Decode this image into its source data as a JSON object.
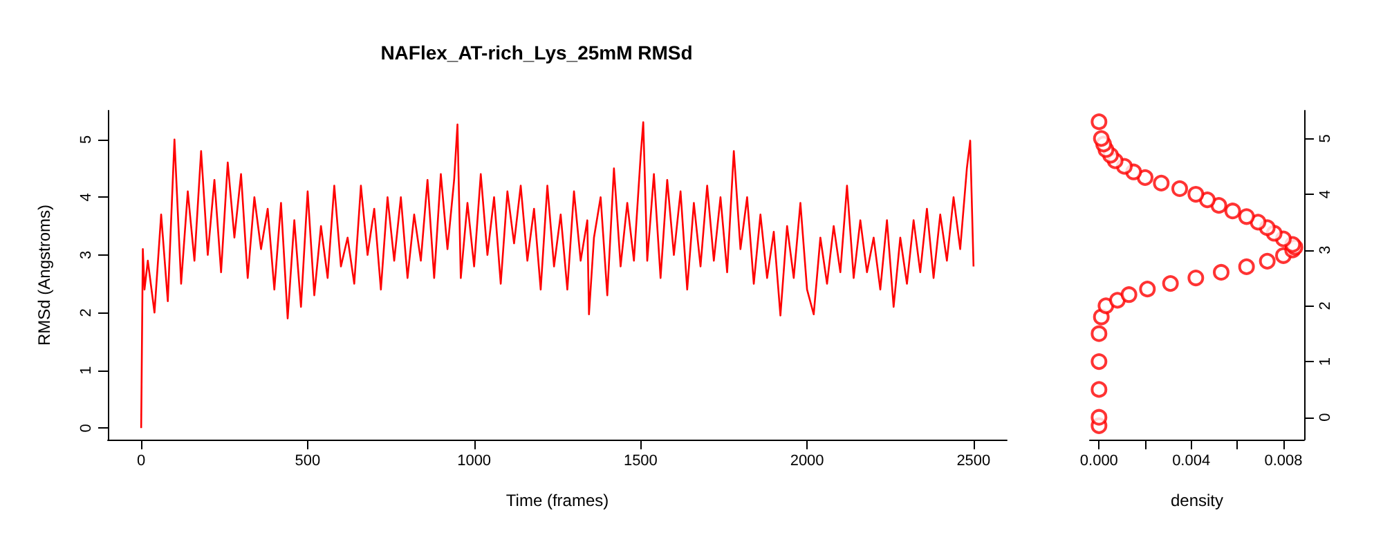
{
  "chart_data": [
    {
      "type": "line",
      "title": "NAFlex_AT-rich_Lys_25mM RMSd",
      "xlabel": "Time (frames)",
      "ylabel": "RMSd (Angstroms)",
      "x": [
        0,
        5,
        10,
        20,
        40,
        60,
        80,
        100,
        120,
        140,
        160,
        180,
        200,
        220,
        240,
        260,
        280,
        300,
        320,
        340,
        360,
        380,
        400,
        420,
        440,
        460,
        480,
        500,
        520,
        540,
        560,
        580,
        600,
        620,
        640,
        660,
        680,
        700,
        720,
        740,
        760,
        780,
        800,
        820,
        840,
        860,
        880,
        900,
        920,
        940,
        950,
        960,
        980,
        1000,
        1020,
        1040,
        1060,
        1080,
        1100,
        1120,
        1140,
        1160,
        1180,
        1200,
        1220,
        1240,
        1260,
        1280,
        1300,
        1320,
        1340,
        1345,
        1360,
        1380,
        1400,
        1420,
        1440,
        1460,
        1480,
        1500,
        1508,
        1520,
        1540,
        1560,
        1580,
        1600,
        1620,
        1640,
        1660,
        1680,
        1700,
        1720,
        1740,
        1760,
        1780,
        1800,
        1820,
        1840,
        1860,
        1880,
        1900,
        1920,
        1940,
        1960,
        1980,
        2000,
        2020,
        2040,
        2060,
        2080,
        2100,
        2120,
        2140,
        2160,
        2180,
        2200,
        2220,
        2240,
        2260,
        2280,
        2300,
        2320,
        2340,
        2360,
        2380,
        2400,
        2420,
        2440,
        2460,
        2480,
        2490,
        2500
      ],
      "series": [
        {
          "color": "#ff0000",
          "values": [
            0.0,
            3.1,
            2.4,
            2.9,
            2.0,
            3.7,
            2.2,
            5.0,
            2.5,
            4.1,
            2.9,
            4.8,
            3.0,
            4.3,
            2.7,
            4.6,
            3.3,
            4.4,
            2.6,
            4.0,
            3.1,
            3.8,
            2.4,
            3.9,
            1.9,
            3.6,
            2.1,
            4.1,
            2.3,
            3.5,
            2.6,
            4.2,
            2.8,
            3.3,
            2.5,
            4.2,
            3.0,
            3.8,
            2.4,
            4.0,
            2.9,
            4.0,
            2.6,
            3.7,
            2.9,
            4.3,
            2.6,
            4.4,
            3.1,
            4.3,
            5.26,
            2.6,
            3.9,
            2.8,
            4.4,
            3.0,
            4.0,
            2.5,
            4.1,
            3.2,
            4.2,
            2.9,
            3.8,
            2.4,
            4.2,
            2.8,
            3.7,
            2.4,
            4.1,
            2.9,
            3.6,
            1.97,
            3.3,
            4.0,
            2.3,
            4.5,
            2.8,
            3.9,
            2.9,
            4.7,
            5.3,
            2.9,
            4.4,
            2.6,
            4.3,
            3.0,
            4.1,
            2.4,
            3.9,
            2.8,
            4.2,
            2.9,
            4.0,
            2.7,
            4.8,
            3.1,
            4.0,
            2.5,
            3.7,
            2.6,
            3.4,
            1.95,
            3.5,
            2.6,
            3.9,
            2.4,
            1.97,
            3.3,
            2.5,
            3.5,
            2.7,
            4.2,
            2.6,
            3.6,
            2.7,
            3.3,
            2.4,
            3.6,
            2.1,
            3.3,
            2.5,
            3.6,
            2.7,
            3.8,
            2.6,
            3.7,
            2.9,
            4.0,
            3.1,
            4.5,
            4.98,
            2.8
          ]
        }
      ],
      "xlim": [
        -100,
        2600
      ],
      "xticks": [
        0,
        500,
        1000,
        1500,
        2000,
        2500
      ],
      "ylim": [
        -0.2,
        5.5
      ],
      "yticks": [
        0,
        1,
        2,
        3,
        4,
        5
      ],
      "grid": false
    },
    {
      "type": "scatter",
      "xlabel": "density",
      "marker": "circle",
      "x": [
        0,
        0,
        0,
        0,
        0,
        0.0001,
        0.0003,
        0.0008,
        0.0013,
        0.0021,
        0.0031,
        0.0042,
        0.0053,
        0.0064,
        0.0073,
        0.008,
        0.0084,
        0.0085,
        0.0084,
        0.008,
        0.0076,
        0.0073,
        0.0069,
        0.0064,
        0.0058,
        0.0052,
        0.0047,
        0.0042,
        0.0035,
        0.0027,
        0.002,
        0.0015,
        0.0011,
        0.0007,
        0.0005,
        0.0003,
        0.0002,
        0.0001,
        0
      ],
      "series": [
        {
          "color": "#ff0000",
          "axis": "y2",
          "values": [
            -0.15,
            0,
            0.5,
            1.0,
            1.5,
            1.8,
            2.0,
            2.1,
            2.2,
            2.3,
            2.4,
            2.5,
            2.6,
            2.7,
            2.8,
            2.9,
            3.0,
            3.05,
            3.1,
            3.2,
            3.3,
            3.4,
            3.5,
            3.6,
            3.7,
            3.8,
            3.9,
            4.0,
            4.1,
            4.2,
            4.3,
            4.4,
            4.5,
            4.6,
            4.7,
            4.8,
            4.9,
            5.0,
            5.3
          ]
        }
      ],
      "xlim": [
        -0.0004,
        0.0089
      ],
      "xticks": [
        {
          "value": 0,
          "label": "0.000"
        },
        {
          "value": 0.002,
          "label": null
        },
        {
          "value": 0.004,
          "label": "0.004"
        },
        {
          "value": 0.006,
          "label": null
        },
        {
          "value": 0.008,
          "label": "0.008"
        }
      ],
      "y2lim": [
        -0.4,
        5.5
      ],
      "y2ticks": [
        0,
        1,
        2,
        3,
        4,
        5
      ],
      "grid": false
    }
  ]
}
